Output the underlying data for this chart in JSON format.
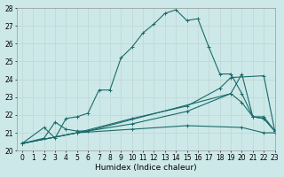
{
  "background_color": "#cde8e8",
  "grid_color": "#c0d8d8",
  "line_color": "#1a6b6b",
  "series": [
    {
      "x": [
        0,
        2,
        3,
        4,
        5,
        6,
        7,
        8,
        9,
        10,
        11,
        12,
        13,
        14,
        15,
        16,
        17,
        18,
        19,
        20,
        21,
        22,
        23
      ],
      "y": [
        20.4,
        21.3,
        20.7,
        21.8,
        21.9,
        22.1,
        23.4,
        23.4,
        25.2,
        25.8,
        26.6,
        27.1,
        27.7,
        27.9,
        27.3,
        27.4,
        25.8,
        24.3,
        24.3,
        23.2,
        21.9,
        21.8,
        21.1
      ]
    },
    {
      "x": [
        0,
        2,
        3,
        4,
        5,
        6,
        19,
        20,
        21,
        22,
        23
      ],
      "y": [
        20.4,
        20.7,
        21.6,
        21.2,
        21.1,
        21.1,
        23.2,
        24.3,
        21.9,
        21.9,
        21.1
      ]
    },
    {
      "x": [
        0,
        5,
        10,
        15,
        18,
        19,
        22,
        23
      ],
      "y": [
        20.4,
        21.0,
        21.8,
        22.5,
        23.5,
        24.1,
        24.2,
        21.1
      ]
    },
    {
      "x": [
        0,
        5,
        10,
        15,
        20,
        22,
        23
      ],
      "y": [
        20.4,
        21.0,
        21.2,
        21.4,
        21.3,
        21.0,
        21.0
      ]
    },
    {
      "x": [
        0,
        5,
        10,
        15,
        19,
        20,
        21,
        22,
        23
      ],
      "y": [
        20.4,
        21.0,
        21.5,
        22.2,
        23.2,
        22.7,
        21.9,
        21.8,
        21.1
      ]
    }
  ],
  "xlabel": "Humidex (Indice chaleur)",
  "xlim": [
    -0.5,
    23
  ],
  "ylim": [
    20,
    28
  ],
  "yticks": [
    20,
    21,
    22,
    23,
    24,
    25,
    26,
    27,
    28
  ],
  "xticks": [
    0,
    1,
    2,
    3,
    4,
    5,
    6,
    7,
    8,
    9,
    10,
    11,
    12,
    13,
    14,
    15,
    16,
    17,
    18,
    19,
    20,
    21,
    22,
    23
  ],
  "xtick_labels": [
    "0",
    "1",
    "2",
    "3",
    "4",
    "5",
    "6",
    "7",
    "8",
    "9",
    "10",
    "11",
    "12",
    "13",
    "14",
    "15",
    "16",
    "17",
    "18",
    "19",
    "20",
    "21",
    "22",
    "23"
  ],
  "marker": "+",
  "marker_size": 3.5,
  "line_width": 0.8,
  "tick_fontsize": 5.5,
  "xlabel_fontsize": 6.5
}
